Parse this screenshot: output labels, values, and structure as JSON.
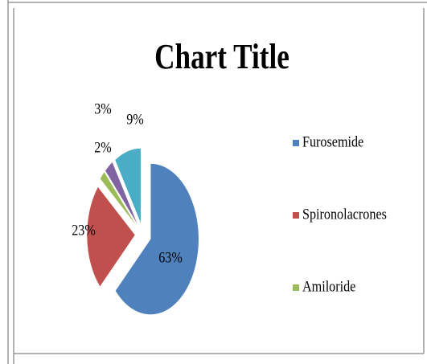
{
  "chart_data": {
    "type": "pie",
    "title": "Chart Title",
    "categories": [
      "Furosemide",
      "Spironolacrones",
      "Amiloride",
      null,
      null
    ],
    "values": [
      63,
      23,
      2,
      3,
      9
    ],
    "value_labels": [
      "63%",
      "23%",
      "2%",
      "3%",
      "9%"
    ],
    "colors": [
      "#4f81bd",
      "#c0504d",
      "#9bbb59",
      "#8064a2",
      "#4bacc6"
    ],
    "legend": "right"
  }
}
